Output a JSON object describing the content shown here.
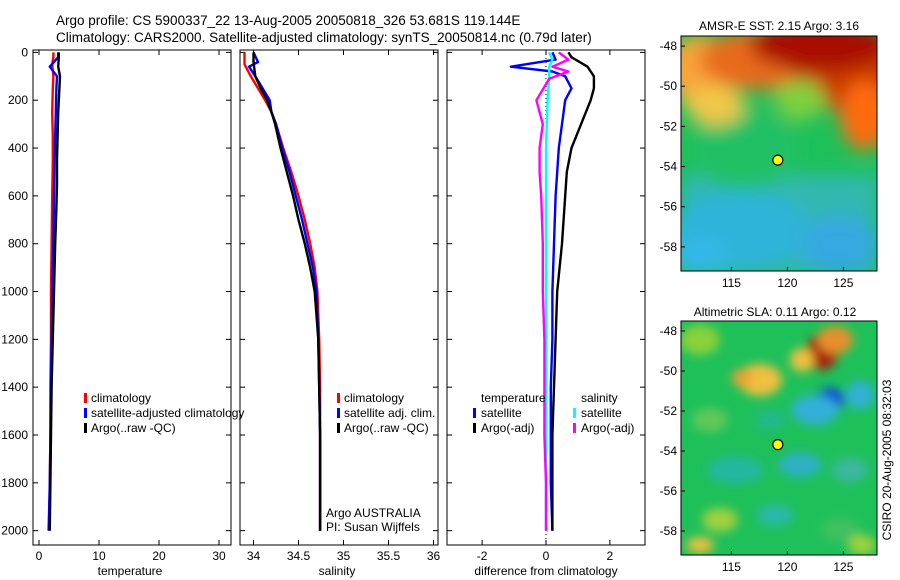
{
  "header": {
    "line1": "Argo profile: CS 5900337_22 13-Aug-2005 20050818_326 53.681S 119.144E",
    "line2": "Climatology: CARS2000. Satellite-adjusted climatology: synTS_20050814.nc (0.79d later)"
  },
  "footer": {
    "vertical": "CSIRO 20-Aug-2005 08:32:03"
  },
  "colors": {
    "climatology": "#ff0000",
    "satellite": "#0000ff",
    "argo": "#000000",
    "sal_satellite": "#00ffff",
    "sal_argo": "#ff00ff",
    "marker": "#ffff00"
  },
  "chart_data": [
    {
      "type": "line",
      "xlabel": "temperature",
      "xticks": [
        0,
        10,
        20,
        30
      ],
      "yticks": [
        0,
        200,
        400,
        600,
        800,
        1000,
        1200,
        1400,
        1600,
        1800,
        2000
      ],
      "xlim": [
        -1,
        32
      ],
      "ylim": [
        2060,
        -10
      ],
      "y_reversed": true,
      "legend": {
        "placement": "lower-right",
        "entries": [
          "climatology",
          "satellite-adjusted climatology",
          "Argo(..raw -QC)"
        ]
      },
      "series": [
        {
          "name": "climatology",
          "color": "#ff0000",
          "points": [
            [
              2.4,
              0
            ],
            [
              2.4,
              20
            ],
            [
              2.2,
              50
            ],
            [
              2.4,
              100
            ],
            [
              2.3,
              150
            ],
            [
              2.2,
              250
            ],
            [
              2.3,
              350
            ],
            [
              2.3,
              450
            ],
            [
              2.2,
              600
            ],
            [
              2.1,
              800
            ],
            [
              2.0,
              1000
            ],
            [
              2.0,
              1200
            ],
            [
              1.9,
              1400
            ],
            [
              1.9,
              1600
            ],
            [
              1.8,
              1800
            ],
            [
              1.7,
              2000
            ]
          ]
        },
        {
          "name": "satellite-adjusted climatology",
          "color": "#0000ff",
          "points": [
            [
              3.2,
              0
            ],
            [
              3.2,
              20
            ],
            [
              1.8,
              60
            ],
            [
              3.0,
              100
            ],
            [
              2.9,
              150
            ],
            [
              2.8,
              250
            ],
            [
              2.7,
              350
            ],
            [
              2.6,
              450
            ],
            [
              2.5,
              600
            ],
            [
              2.4,
              800
            ],
            [
              2.2,
              1000
            ],
            [
              2.1,
              1200
            ],
            [
              2.0,
              1400
            ],
            [
              1.9,
              1600
            ],
            [
              1.8,
              1800
            ],
            [
              1.6,
              2000
            ]
          ]
        },
        {
          "name": "Argo(..raw -QC)",
          "color": "#000000",
          "points": [
            [
              3.3,
              0
            ],
            [
              3.3,
              20
            ],
            [
              3.2,
              60
            ],
            [
              3.5,
              100
            ],
            [
              3.4,
              150
            ],
            [
              3.2,
              250
            ],
            [
              3.1,
              350
            ],
            [
              3.0,
              450
            ],
            [
              3.0,
              550
            ],
            [
              2.9,
              650
            ],
            [
              2.7,
              800
            ],
            [
              2.5,
              1000
            ],
            [
              2.3,
              1200
            ],
            [
              2.1,
              1400
            ],
            [
              2.0,
              1600
            ],
            [
              1.9,
              1800
            ],
            [
              1.8,
              2000
            ]
          ]
        }
      ]
    },
    {
      "type": "line",
      "xlabel": "salinity",
      "xticks": [
        34,
        34.5,
        35,
        35.5,
        36
      ],
      "yticks": [
        0,
        200,
        400,
        600,
        800,
        1000,
        1200,
        1400,
        1600,
        1800,
        2000
      ],
      "xlim": [
        33.85,
        36.05
      ],
      "ylim": [
        2060,
        -10
      ],
      "y_reversed": true,
      "legend": {
        "placement": "lower-right",
        "entries": [
          "climatology",
          "satellite adj. clim.",
          "Argo(..raw -QC)"
        ]
      },
      "annotation": [
        "Argo AUSTRALIA",
        "PI: Susan Wijffels"
      ],
      "series": [
        {
          "name": "climatology",
          "color": "#ff0000",
          "points": [
            [
              33.9,
              0
            ],
            [
              33.9,
              50
            ],
            [
              33.97,
              100
            ],
            [
              34.05,
              150
            ],
            [
              34.13,
              200
            ],
            [
              34.2,
              250
            ],
            [
              34.25,
              300
            ],
            [
              34.33,
              400
            ],
            [
              34.42,
              500
            ],
            [
              34.5,
              600
            ],
            [
              34.57,
              700
            ],
            [
              34.63,
              800
            ],
            [
              34.68,
              900
            ],
            [
              34.71,
              1000
            ],
            [
              34.73,
              1200
            ],
            [
              34.74,
              1400
            ],
            [
              34.74,
              1600
            ],
            [
              34.74,
              1800
            ],
            [
              34.74,
              2000
            ]
          ]
        },
        {
          "name": "satellite adj. clim.",
          "color": "#0000ff",
          "points": [
            [
              34.0,
              0
            ],
            [
              34.05,
              40
            ],
            [
              33.95,
              60
            ],
            [
              34.02,
              100
            ],
            [
              34.1,
              150
            ],
            [
              34.18,
              200
            ],
            [
              34.2,
              250
            ],
            [
              34.25,
              300
            ],
            [
              34.32,
              400
            ],
            [
              34.4,
              500
            ],
            [
              34.47,
              600
            ],
            [
              34.54,
              700
            ],
            [
              34.6,
              800
            ],
            [
              34.66,
              900
            ],
            [
              34.7,
              1000
            ],
            [
              34.72,
              1200
            ],
            [
              34.73,
              1400
            ],
            [
              34.74,
              1600
            ],
            [
              34.74,
              1800
            ],
            [
              34.74,
              2000
            ]
          ]
        },
        {
          "name": "Argo(..raw -QC)",
          "color": "#000000",
          "points": [
            [
              34.0,
              0
            ],
            [
              34.0,
              40
            ],
            [
              34.02,
              100
            ],
            [
              34.08,
              150
            ],
            [
              34.15,
              200
            ],
            [
              34.2,
              250
            ],
            [
              34.24,
              300
            ],
            [
              34.3,
              400
            ],
            [
              34.37,
              500
            ],
            [
              34.44,
              600
            ],
            [
              34.5,
              700
            ],
            [
              34.57,
              800
            ],
            [
              34.63,
              900
            ],
            [
              34.68,
              1000
            ],
            [
              34.72,
              1200
            ],
            [
              34.73,
              1400
            ],
            [
              34.74,
              1600
            ],
            [
              34.74,
              1800
            ],
            [
              34.74,
              2000
            ]
          ]
        }
      ]
    },
    {
      "type": "line",
      "xlabel": "difference from climatology",
      "xticks": [
        -2,
        0,
        2
      ],
      "yticks": [
        0,
        200,
        400,
        600,
        800,
        1000,
        1200,
        1400,
        1600,
        1800,
        2000
      ],
      "xlim": [
        -3.1,
        3.1
      ],
      "ylim": [
        2060,
        -10
      ],
      "y_reversed": true,
      "zero_line": "dotted",
      "legend": {
        "placement": "lower-center",
        "temperature_title": "temperature",
        "salinity_title": "salinity",
        "temperature_entries": [
          "satellite",
          "Argo(-adj)"
        ],
        "salinity_entries": [
          "satellite",
          "Argo(-adj)"
        ]
      },
      "series": [
        {
          "name": "temperature satellite",
          "color": "#0000ff",
          "points": [
            [
              0.2,
              0
            ],
            [
              0.3,
              30
            ],
            [
              -1.1,
              60
            ],
            [
              0.2,
              80
            ],
            [
              0.6,
              100
            ],
            [
              0.8,
              150
            ],
            [
              0.6,
              200
            ],
            [
              0.5,
              300
            ],
            [
              0.4,
              400
            ],
            [
              0.35,
              500
            ],
            [
              0.3,
              600
            ],
            [
              0.25,
              800
            ],
            [
              0.2,
              1000
            ],
            [
              0.2,
              1200
            ],
            [
              0.15,
              1400
            ],
            [
              0.15,
              1600
            ],
            [
              0.15,
              1800
            ],
            [
              0.2,
              2000
            ]
          ]
        },
        {
          "name": "temperature Argo(-adj)",
          "color": "#000000",
          "points": [
            [
              0.7,
              0
            ],
            [
              0.8,
              20
            ],
            [
              1.3,
              60
            ],
            [
              1.5,
              100
            ],
            [
              1.5,
              150
            ],
            [
              1.4,
              200
            ],
            [
              1.1,
              300
            ],
            [
              0.8,
              400
            ],
            [
              0.65,
              500
            ],
            [
              0.6,
              600
            ],
            [
              0.5,
              800
            ],
            [
              0.35,
              1000
            ],
            [
              0.3,
              1200
            ],
            [
              0.25,
              1400
            ],
            [
              0.2,
              1600
            ],
            [
              0.2,
              1800
            ],
            [
              0.2,
              2000
            ]
          ]
        },
        {
          "name": "salinity satellite",
          "color": "#00ffff",
          "points": [
            [
              0.1,
              0
            ],
            [
              0.2,
              30
            ],
            [
              0.1,
              60
            ],
            [
              0.1,
              100
            ],
            [
              0.05,
              200
            ],
            [
              0.0,
              400
            ],
            [
              0.0,
              600
            ],
            [
              0.0,
              800
            ],
            [
              0.0,
              1000
            ],
            [
              0.0,
              1200
            ],
            [
              0.0,
              1400
            ],
            [
              0.0,
              1600
            ],
            [
              0.0,
              1800
            ],
            [
              0.0,
              2000
            ]
          ]
        },
        {
          "name": "salinity Argo(-adj)",
          "color": "#ff00ff",
          "points": [
            [
              0.4,
              0
            ],
            [
              0.7,
              30
            ],
            [
              0.2,
              60
            ],
            [
              0.7,
              80
            ],
            [
              0.1,
              110
            ],
            [
              -0.3,
              200
            ],
            [
              -0.2,
              250
            ],
            [
              -0.1,
              300
            ],
            [
              -0.2,
              400
            ],
            [
              -0.2,
              500
            ],
            [
              -0.15,
              600
            ],
            [
              -0.1,
              800
            ],
            [
              -0.1,
              1000
            ],
            [
              -0.05,
              1200
            ],
            [
              -0.05,
              1400
            ],
            [
              -0.05,
              1600
            ],
            [
              0.0,
              1800
            ],
            [
              0.0,
              2000
            ]
          ]
        }
      ]
    },
    {
      "type": "heatmap",
      "title": "AMSR-E SST: 2.15 Argo: 3.16",
      "xticks": [
        115,
        120,
        125
      ],
      "yticks": [
        -48,
        -50,
        -52,
        -54,
        -56,
        -58
      ],
      "xlim": [
        110.5,
        128
      ],
      "ylim": [
        -59.2,
        -47.5
      ],
      "marker": {
        "lon": 119.144,
        "lat": -53.681
      }
    },
    {
      "type": "heatmap",
      "title": "Altimetric SLA: 0.11 Argo: 0.12",
      "xticks": [
        115,
        120,
        125
      ],
      "yticks": [
        -48,
        -50,
        -52,
        -54,
        -56,
        -58
      ],
      "xlim": [
        110.5,
        128
      ],
      "ylim": [
        -59.2,
        -47.5
      ],
      "marker": {
        "lon": 119.144,
        "lat": -53.681
      }
    }
  ]
}
